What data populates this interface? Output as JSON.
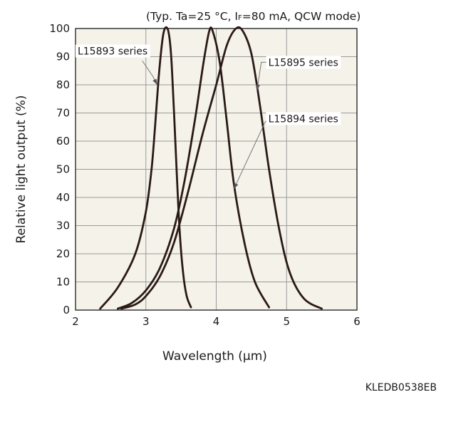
{
  "conditions": {
    "prefix": "(Typ. Ta=25 °C, I",
    "subscript": "F",
    "suffix": "=80 mA, QCW mode)"
  },
  "document_code": "KLEDB0538EB",
  "chart_data": {
    "type": "line",
    "xlabel": "Wavelength (μm)",
    "ylabel": "Relative light output (%)",
    "xlim": [
      2,
      6
    ],
    "ylim": [
      0,
      100
    ],
    "xticks": [
      2,
      3,
      4,
      5,
      6
    ],
    "yticks": [
      0,
      10,
      20,
      30,
      40,
      50,
      60,
      70,
      80,
      90,
      100
    ],
    "grid": true,
    "background": "#f5f2ea",
    "line_color": "#2a1a16",
    "series": [
      {
        "name": "L15893 series",
        "points": [
          [
            2.35,
            0.5
          ],
          [
            2.6,
            8
          ],
          [
            2.85,
            20
          ],
          [
            3.0,
            35
          ],
          [
            3.08,
            50
          ],
          [
            3.13,
            65
          ],
          [
            3.18,
            82
          ],
          [
            3.23,
            95
          ],
          [
            3.27,
            100
          ],
          [
            3.32,
            99
          ],
          [
            3.36,
            90
          ],
          [
            3.4,
            70
          ],
          [
            3.44,
            48
          ],
          [
            3.48,
            28
          ],
          [
            3.53,
            13
          ],
          [
            3.58,
            5
          ],
          [
            3.64,
            1
          ]
        ]
      },
      {
        "name": "L15894 series",
        "points": [
          [
            2.6,
            0.5
          ],
          [
            2.8,
            2.5
          ],
          [
            3.0,
            7
          ],
          [
            3.2,
            15
          ],
          [
            3.4,
            29
          ],
          [
            3.55,
            46
          ],
          [
            3.7,
            68
          ],
          [
            3.82,
            88
          ],
          [
            3.9,
            99
          ],
          [
            3.95,
            99
          ],
          [
            4.05,
            88
          ],
          [
            4.15,
            67
          ],
          [
            4.25,
            45
          ],
          [
            4.4,
            24
          ],
          [
            4.55,
            10
          ],
          [
            4.75,
            1
          ]
        ]
      },
      {
        "name": "L15895 series",
        "points": [
          [
            2.65,
            0.5
          ],
          [
            2.85,
            2
          ],
          [
            3.0,
            5
          ],
          [
            3.2,
            12
          ],
          [
            3.4,
            24
          ],
          [
            3.6,
            42
          ],
          [
            3.8,
            62
          ],
          [
            4.0,
            80
          ],
          [
            4.15,
            94
          ],
          [
            4.28,
            100
          ],
          [
            4.38,
            99
          ],
          [
            4.5,
            91
          ],
          [
            4.62,
            73
          ],
          [
            4.75,
            50
          ],
          [
            4.9,
            28
          ],
          [
            5.05,
            13
          ],
          [
            5.25,
            4
          ],
          [
            5.5,
            0.5
          ]
        ]
      }
    ],
    "annotations": [
      {
        "text": "L15893 series",
        "series": "L15893 series",
        "label_at": [
          2.02,
          91
        ],
        "leader": [
          [
            2.95,
            88.5
          ],
          [
            3.1,
            83
          ],
          [
            3.16,
            80
          ]
        ]
      },
      {
        "text": "L15895 series",
        "series": "L15895 series",
        "label_at": [
          4.73,
          87
        ],
        "leader": [
          [
            4.8,
            88
          ],
          [
            4.64,
            88
          ],
          [
            4.58,
            78
          ]
        ]
      },
      {
        "text": "L15894 series",
        "series": "L15894 series",
        "label_at": [
          4.73,
          67
        ],
        "leader": [
          [
            4.8,
            67
          ],
          [
            4.7,
            67
          ],
          [
            4.25,
            43
          ]
        ]
      }
    ]
  }
}
